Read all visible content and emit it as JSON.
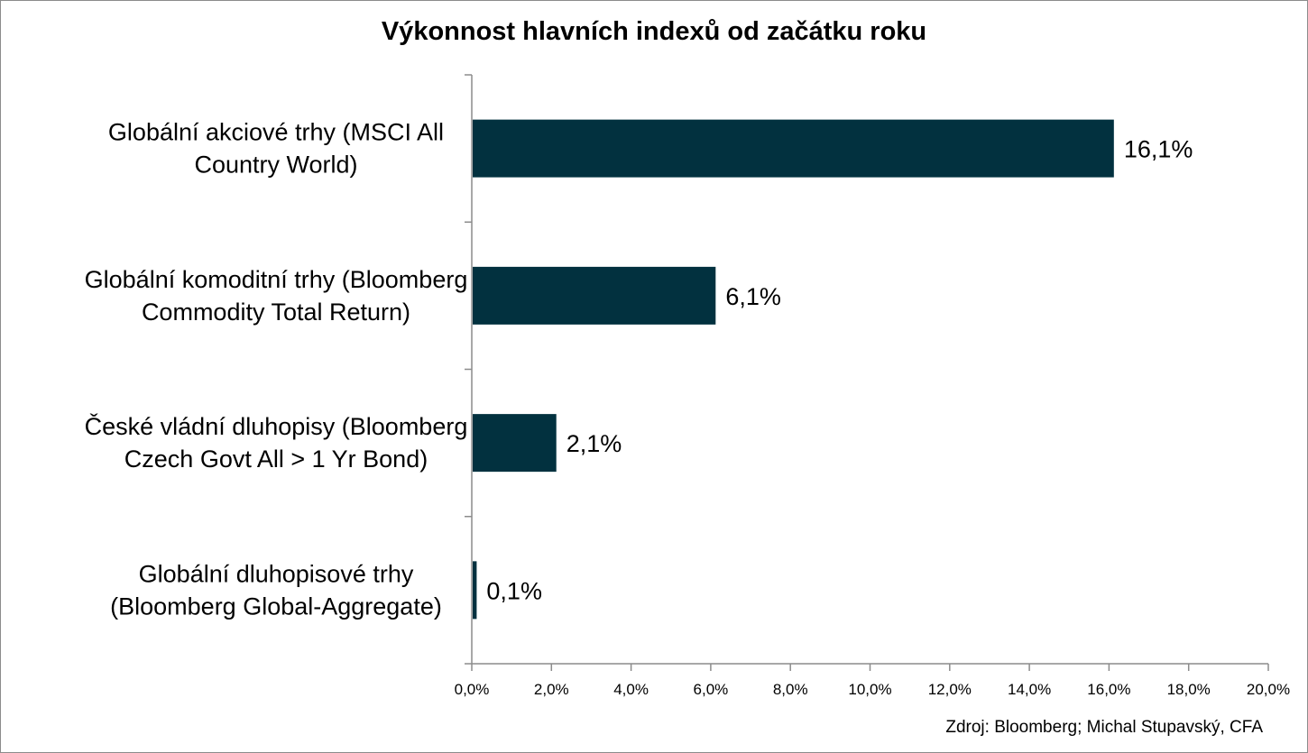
{
  "chart_data": {
    "type": "bar",
    "orientation": "horizontal",
    "title": "Výkonnost hlavních indexů od začátku roku",
    "categories": [
      [
        "Globální akciové trhy (MSCI All",
        "Country World)"
      ],
      [
        "Globální komoditní trhy (Bloomberg",
        "Commodity Total Return)"
      ],
      [
        "České vládní dluhopisy (Bloomberg",
        "Czech Govt All > 1 Yr Bond)"
      ],
      [
        "Globální dluhopisové trhy",
        "(Bloomberg Global-Aggregate)"
      ]
    ],
    "values": [
      16.1,
      6.1,
      2.1,
      0.1
    ],
    "data_labels": [
      "16,1%",
      "6,1%",
      "2,1%",
      "0,1%"
    ],
    "xlim": [
      0,
      20
    ],
    "x_ticks": [
      0,
      2,
      4,
      6,
      8,
      10,
      12,
      14,
      16,
      18,
      20
    ],
    "x_tick_labels": [
      "0,0%",
      "2,0%",
      "4,0%",
      "6,0%",
      "8,0%",
      "10,0%",
      "12,0%",
      "14,0%",
      "16,0%",
      "18,0%",
      "20,0%"
    ],
    "xlabel": "",
    "ylabel": "",
    "grid": false,
    "legend": "none",
    "bar_color": "#02313f",
    "source": "Zdroj: Bloomberg; Michal Stupavský, CFA"
  }
}
